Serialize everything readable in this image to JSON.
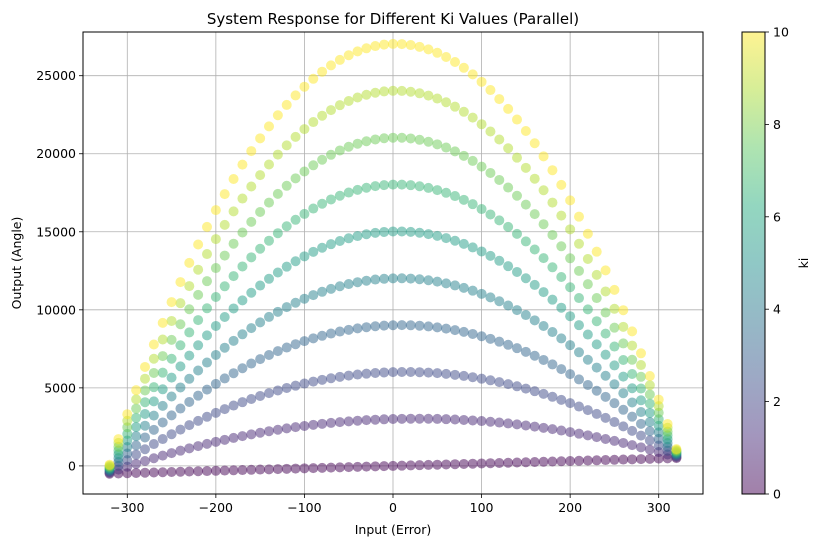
{
  "chart_data": {
    "type": "scatter",
    "title": "System Response for Different Ki Values (Parallel)",
    "xlabel": "Input (Error)",
    "ylabel": "Output (Angle)",
    "xlim": [
      -350,
      350
    ],
    "ylim": [
      -1800,
      27800
    ],
    "xticks": [
      -300,
      -200,
      -100,
      0,
      100,
      200,
      300
    ],
    "yticks": [
      0,
      5000,
      10000,
      15000,
      20000,
      25000
    ],
    "grid": true,
    "point_alpha": 0.5,
    "x_range": [
      -320,
      320
    ],
    "points_per_series": 65,
    "series": [
      {
        "ki": 0,
        "start": -500,
        "peak": 0,
        "end": 500
      },
      {
        "ki": 1.11,
        "start": -436,
        "peak": 2940,
        "end": 564
      },
      {
        "ki": 2.22,
        "start": -372,
        "peak": 5880,
        "end": 628
      },
      {
        "ki": 3.33,
        "start": -308,
        "peak": 8820,
        "end": 692
      },
      {
        "ki": 4.44,
        "start": -244,
        "peak": 11760,
        "end": 756
      },
      {
        "ki": 5.56,
        "start": -180,
        "peak": 14700,
        "end": 820
      },
      {
        "ki": 6.67,
        "start": -116,
        "peak": 17640,
        "end": 884
      },
      {
        "ki": 7.78,
        "start": -52,
        "peak": 20580,
        "end": 948
      },
      {
        "ki": 8.89,
        "start": 12,
        "peak": 23520,
        "end": 1012
      },
      {
        "ki": 10,
        "start": 76,
        "peak": 26460,
        "end": 1076
      }
    ],
    "colorbar": {
      "label": "ki",
      "min": 0,
      "max": 10,
      "ticks": [
        "0",
        "2",
        "4",
        "6",
        "8",
        "10"
      ],
      "colormap": "viridis"
    }
  }
}
